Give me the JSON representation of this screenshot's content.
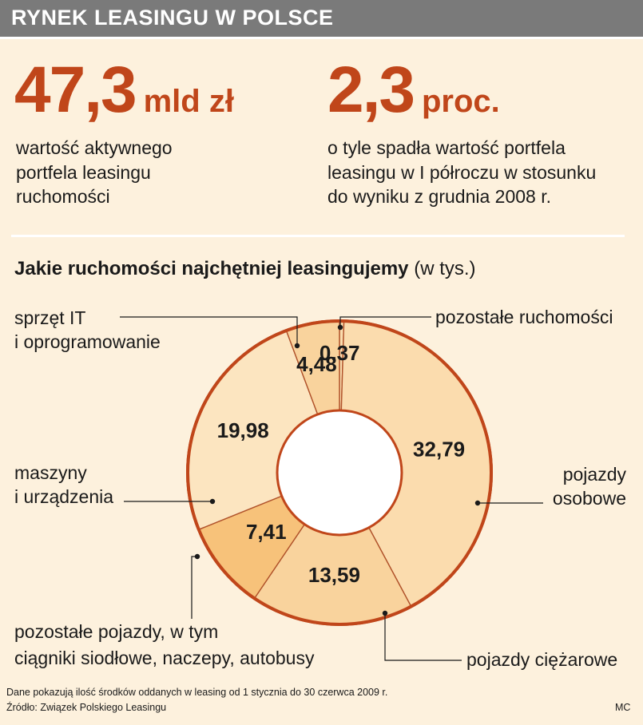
{
  "header": {
    "title": "RYNEK LEASINGU W POLSCE"
  },
  "stats": [
    {
      "value": "47,3",
      "unit": "mld zł",
      "description_lines": [
        "wartość aktywnego",
        "portfela leasingu",
        "ruchomości"
      ]
    },
    {
      "value": "2,3",
      "unit": "proc.",
      "description_lines": [
        "o tyle spadła wartość portfela",
        "leasingu w I półroczu w stosunku",
        "do wyniku z grudnia 2008 r."
      ]
    }
  ],
  "chart_title": {
    "bold": "Jakie ruchomości najchętniej leasingujemy",
    "unit": "(w tys.)"
  },
  "chart_data": {
    "type": "pie",
    "donut": true,
    "start": "top, clockwise",
    "slices": [
      {
        "category_lines": [
          "pozostałe ruchomości"
        ],
        "value": 0.37,
        "value_label": "0,37",
        "color": "#fbdcae"
      },
      {
        "category_lines": [
          "pojazdy",
          "osobowe"
        ],
        "value": 32.79,
        "value_label": "32,79",
        "color": "#fbdcae"
      },
      {
        "category_lines": [
          "pojazdy ciężarowe"
        ],
        "value": 13.59,
        "value_label": "13,59",
        "color": "#f9d39d"
      },
      {
        "category_lines": [
          "pozostałe pojazdy, w tym",
          "ciągniki siodłowe, naczepy, autobusy"
        ],
        "value": 7.41,
        "value_label": "7,41",
        "color": "#f7c27a"
      },
      {
        "category_lines": [
          "maszyny",
          "i urządzenia"
        ],
        "value": 19.98,
        "value_label": "19,98",
        "color": "#fce5c0"
      },
      {
        "category_lines": [
          "sprzęt IT",
          "i oprogramowanie"
        ],
        "value": 4.48,
        "value_label": "4,48",
        "color": "#f9d39d"
      }
    ],
    "colors": {
      "outline": "#c0461a",
      "separator": "#b0522a",
      "center": "#ffffff"
    }
  },
  "footer": {
    "note": "Dane pokazują ilość środków oddanych w leasing od 1 stycznia do 30 czerwca 2009 r.",
    "source": "Źródło: Związek Polskiego Leasingu",
    "credit": "MC"
  }
}
